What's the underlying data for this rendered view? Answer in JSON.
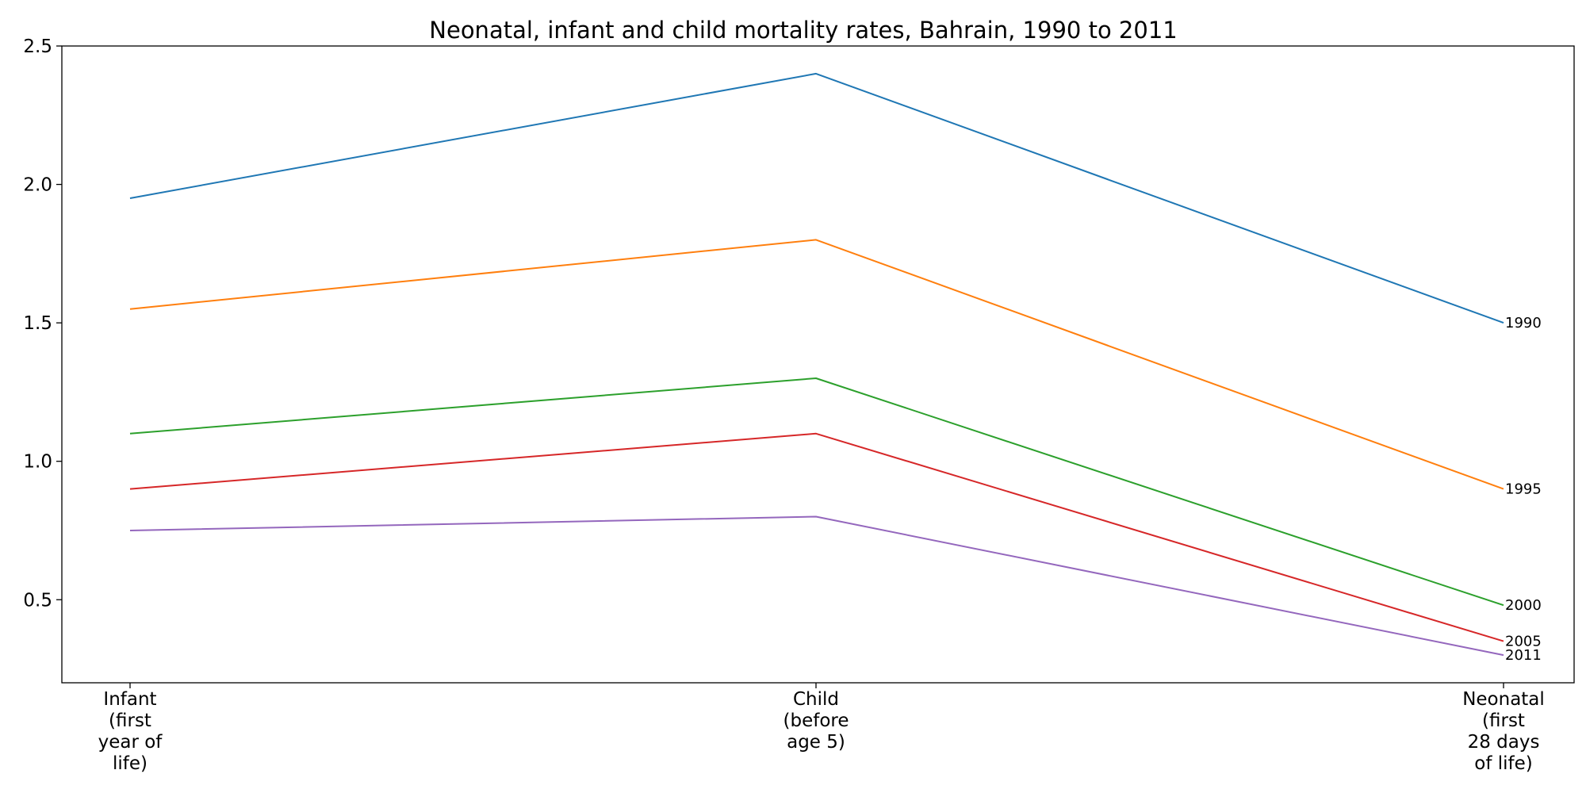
{
  "chart_data": {
    "type": "line",
    "title": "Neonatal, infant and child mortality rates, Bahrain, 1990 to 2011",
    "xlabel": "",
    "ylabel": "",
    "categories": [
      "Infant\n(first\nyear of\nlife)",
      "Child\n(before\nage 5)",
      "Neonatal\n(first\n28 days\nof life)"
    ],
    "ylim": [
      0.2,
      2.5
    ],
    "yticks": [
      0.5,
      1.0,
      1.5,
      2.0,
      2.5
    ],
    "ytick_labels": [
      "0.5",
      "1.0",
      "1.5",
      "2.0",
      "2.5"
    ],
    "grid": false,
    "legend": "none",
    "series": [
      {
        "name": "1990",
        "color": "#1f77b4",
        "values": [
          1.95,
          2.4,
          1.5
        ]
      },
      {
        "name": "1995",
        "color": "#ff7f0e",
        "values": [
          1.55,
          1.8,
          0.9
        ]
      },
      {
        "name": "2000",
        "color": "#2ca02c",
        "values": [
          1.1,
          1.3,
          0.48
        ]
      },
      {
        "name": "2005",
        "color": "#d62728",
        "values": [
          0.9,
          1.1,
          0.35
        ]
      },
      {
        "name": "2011",
        "color": "#9467bd",
        "values": [
          0.75,
          0.8,
          0.3
        ]
      }
    ]
  }
}
